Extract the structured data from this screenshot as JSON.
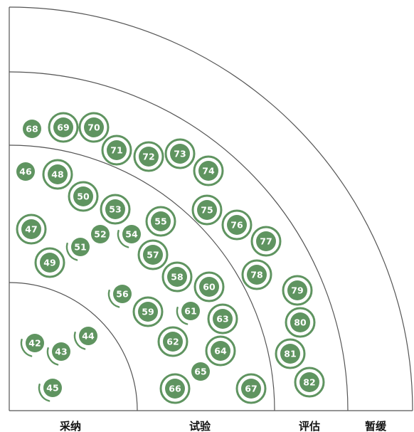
{
  "colors": {
    "blip": "#5f9460",
    "lines": "#555555",
    "text": "#111111"
  },
  "rings": [
    {
      "key": "adopt",
      "label": "采纳"
    },
    {
      "key": "trial",
      "label": "试验"
    },
    {
      "key": "assess",
      "label": "评估"
    },
    {
      "key": "hold",
      "label": "暂缓"
    }
  ],
  "blips": [
    {
      "id": "42",
      "ring": "adopt",
      "marker": "arc"
    },
    {
      "id": "43",
      "ring": "adopt",
      "marker": "arc"
    },
    {
      "id": "44",
      "ring": "adopt",
      "marker": "arc"
    },
    {
      "id": "45",
      "ring": "adopt",
      "marker": "arc"
    },
    {
      "id": "46",
      "ring": "trial",
      "marker": "dot"
    },
    {
      "id": "47",
      "ring": "trial",
      "marker": "ring"
    },
    {
      "id": "48",
      "ring": "trial",
      "marker": "ring"
    },
    {
      "id": "49",
      "ring": "trial",
      "marker": "ring"
    },
    {
      "id": "50",
      "ring": "trial",
      "marker": "ring"
    },
    {
      "id": "51",
      "ring": "trial",
      "marker": "arc"
    },
    {
      "id": "52",
      "ring": "trial",
      "marker": "dot"
    },
    {
      "id": "53",
      "ring": "trial",
      "marker": "ring"
    },
    {
      "id": "54",
      "ring": "trial",
      "marker": "arc"
    },
    {
      "id": "55",
      "ring": "trial",
      "marker": "ring"
    },
    {
      "id": "56",
      "ring": "trial",
      "marker": "arc"
    },
    {
      "id": "57",
      "ring": "trial",
      "marker": "ring"
    },
    {
      "id": "58",
      "ring": "trial",
      "marker": "ring"
    },
    {
      "id": "59",
      "ring": "trial",
      "marker": "ring"
    },
    {
      "id": "60",
      "ring": "trial",
      "marker": "ring"
    },
    {
      "id": "61",
      "ring": "trial",
      "marker": "arc"
    },
    {
      "id": "62",
      "ring": "trial",
      "marker": "ring"
    },
    {
      "id": "63",
      "ring": "trial",
      "marker": "ring"
    },
    {
      "id": "64",
      "ring": "trial",
      "marker": "ring"
    },
    {
      "id": "65",
      "ring": "trial",
      "marker": "dot"
    },
    {
      "id": "66",
      "ring": "trial",
      "marker": "ring"
    },
    {
      "id": "67",
      "ring": "trial",
      "marker": "ring"
    },
    {
      "id": "68",
      "ring": "assess",
      "marker": "dot"
    },
    {
      "id": "69",
      "ring": "assess",
      "marker": "ring"
    },
    {
      "id": "70",
      "ring": "assess",
      "marker": "ring"
    },
    {
      "id": "71",
      "ring": "assess",
      "marker": "ring"
    },
    {
      "id": "72",
      "ring": "assess",
      "marker": "ring"
    },
    {
      "id": "73",
      "ring": "assess",
      "marker": "ring"
    },
    {
      "id": "74",
      "ring": "assess",
      "marker": "ring"
    },
    {
      "id": "75",
      "ring": "assess",
      "marker": "ring"
    },
    {
      "id": "76",
      "ring": "assess",
      "marker": "ring"
    },
    {
      "id": "77",
      "ring": "assess",
      "marker": "ring"
    },
    {
      "id": "78",
      "ring": "assess",
      "marker": "ring"
    },
    {
      "id": "79",
      "ring": "assess",
      "marker": "ring"
    },
    {
      "id": "80",
      "ring": "assess",
      "marker": "ring"
    },
    {
      "id": "81",
      "ring": "assess",
      "marker": "ring"
    },
    {
      "id": "82",
      "ring": "assess",
      "marker": "ring"
    }
  ]
}
